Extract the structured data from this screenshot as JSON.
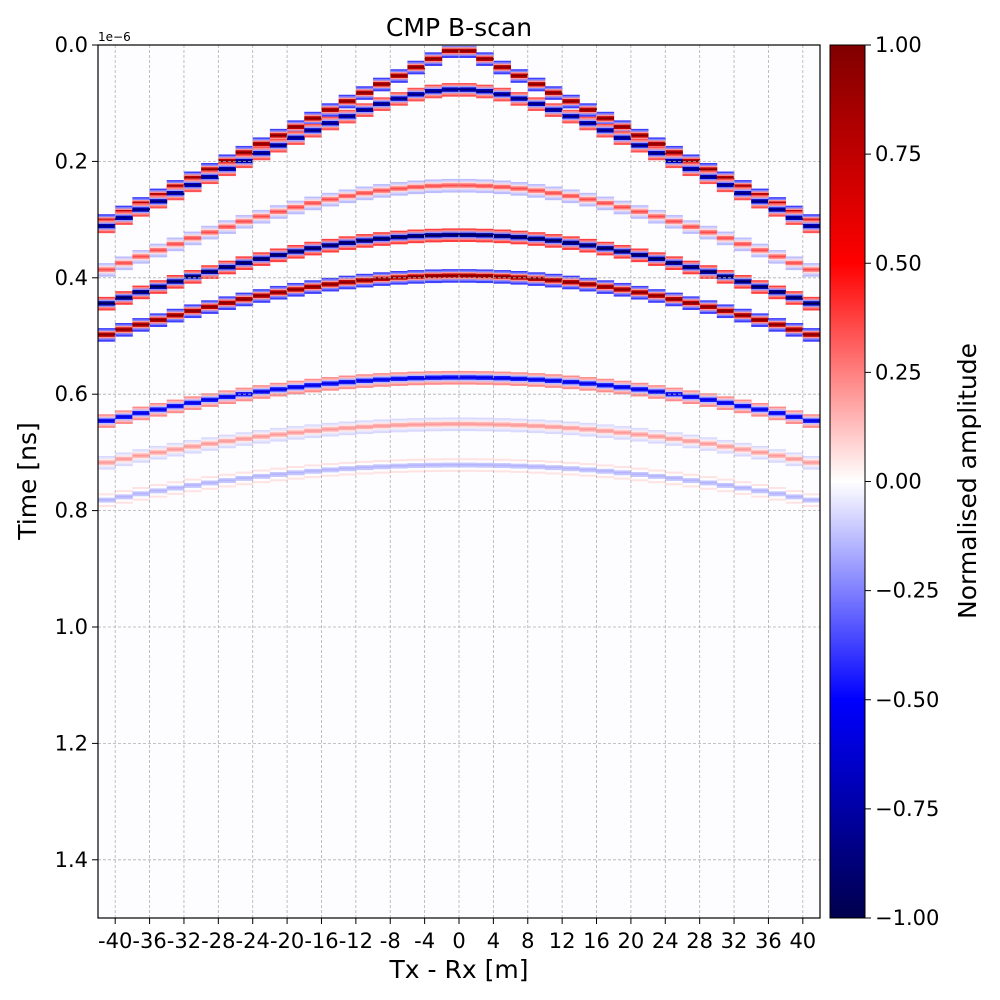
{
  "chart_data": {
    "type": "heatmap",
    "title": "CMP B-scan",
    "xlabel": "Tx - Rx [m]",
    "ylabel": "Time [ns]",
    "y_offset_text": "1e−6",
    "xlim": [
      -42,
      42
    ],
    "ylim": [
      0,
      1.5
    ],
    "y_inverted": true,
    "grid": true,
    "x_ticks": [
      "-40",
      "-36",
      "-32",
      "-28",
      "-24",
      "-20",
      "-16",
      "-12",
      "-8",
      "-4",
      "0",
      "4",
      "8",
      "12",
      "16",
      "20",
      "24",
      "28",
      "32",
      "36",
      "40"
    ],
    "x_tick_values": [
      -40,
      -36,
      -32,
      -28,
      -24,
      -20,
      -16,
      -12,
      -8,
      -4,
      0,
      4,
      8,
      12,
      16,
      20,
      24,
      28,
      32,
      36,
      40
    ],
    "y_ticks": [
      "0.0",
      "0.2",
      "0.4",
      "0.6",
      "0.8",
      "1.0",
      "1.2",
      "1.4"
    ],
    "y_tick_values": [
      0.0,
      0.2,
      0.4,
      0.6,
      0.8,
      1.0,
      1.2,
      1.4
    ],
    "colorbar": {
      "label": "Normalised amplitude",
      "colormap": "seismic",
      "range": [
        -1,
        1
      ],
      "ticks": [
        "1.00",
        "0.75",
        "0.50",
        "0.25",
        "0.00",
        "−0.25",
        "−0.50",
        "−0.75",
        "−1.00"
      ],
      "tick_values": [
        1.0,
        0.75,
        0.5,
        0.25,
        0.0,
        -0.25,
        -0.5,
        -0.75,
        -1.0
      ],
      "colors": [
        "#00004c",
        "#0000ff",
        "#ffffff",
        "#ff0000",
        "#800000"
      ]
    },
    "trace_spacing": 2,
    "reflections": [
      {
        "t0": 0.005,
        "v": 0.3,
        "amplitude": 1.0
      },
      {
        "t0": 0.075,
        "v": 0.3,
        "amplitude": 0.9
      },
      {
        "t0": 0.24,
        "v": 0.3,
        "amplitude": 0.35
      },
      {
        "t0": 0.325,
        "v": 0.3,
        "amplitude": 1.0
      },
      {
        "t0": 0.395,
        "v": 0.3,
        "amplitude": 1.0
      },
      {
        "t0": 0.57,
        "v": 0.3,
        "amplitude": 0.6
      },
      {
        "t0": 0.65,
        "v": 0.3,
        "amplitude": 0.2
      },
      {
        "t0": 0.72,
        "v": 0.3,
        "amplitude": 0.15
      }
    ]
  }
}
